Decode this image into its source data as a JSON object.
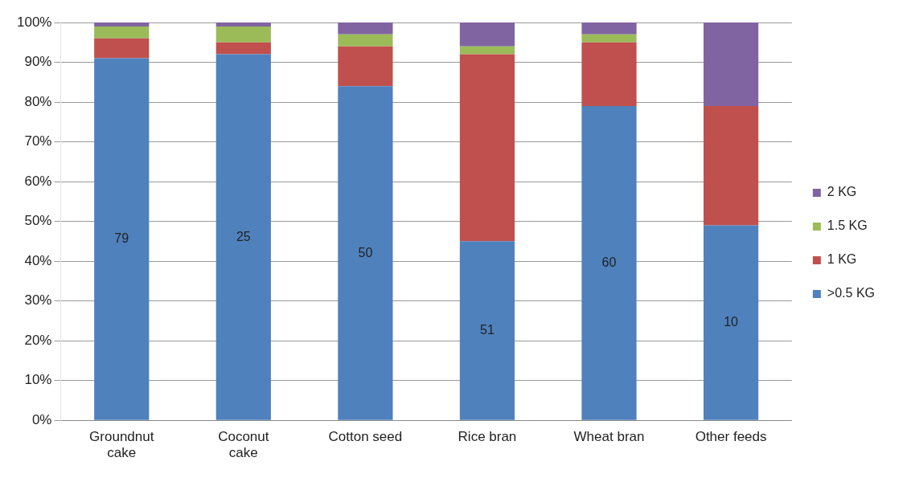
{
  "chart_data": {
    "type": "bar",
    "stacked": true,
    "categories": [
      "Groundnut cake",
      "Coconut cake",
      "Cotton seed",
      "Rice bran",
      "Wheat bran",
      "Other feeds"
    ],
    "series": [
      {
        "name": ">0.5 KG",
        "color": "#4f81bd",
        "values": [
          91,
          92,
          84,
          45,
          79,
          49
        ]
      },
      {
        "name": "1 KG",
        "color": "#c0504d",
        "values": [
          5,
          3,
          10,
          47,
          16,
          30
        ]
      },
      {
        "name": "1.5 KG",
        "color": "#9bbb59",
        "values": [
          3,
          4,
          3,
          2,
          2,
          0
        ]
      },
      {
        "name": "2 KG",
        "color": "#8064a2",
        "values": [
          1,
          1,
          3,
          6,
          3,
          21
        ]
      }
    ],
    "ylim": [
      0,
      100
    ],
    "yticks": [
      {
        "value": 0,
        "label": "0%"
      },
      {
        "value": 10,
        "label": "10%"
      },
      {
        "value": 20,
        "label": "20%"
      },
      {
        "value": 30,
        "label": "30%"
      },
      {
        "value": 40,
        "label": "40%"
      },
      {
        "value": 50,
        "label": "50%"
      },
      {
        "value": 60,
        "label": "60%"
      },
      {
        "value": 70,
        "label": "70%"
      },
      {
        "value": 80,
        "label": "80%"
      },
      {
        "value": 90,
        "label": "90%"
      },
      {
        "value": 100,
        "label": "100%"
      }
    ],
    "grid": "y",
    "legend": "right",
    "annotations": [
      "79",
      "25",
      "50",
      "51",
      "60",
      "10"
    ]
  }
}
